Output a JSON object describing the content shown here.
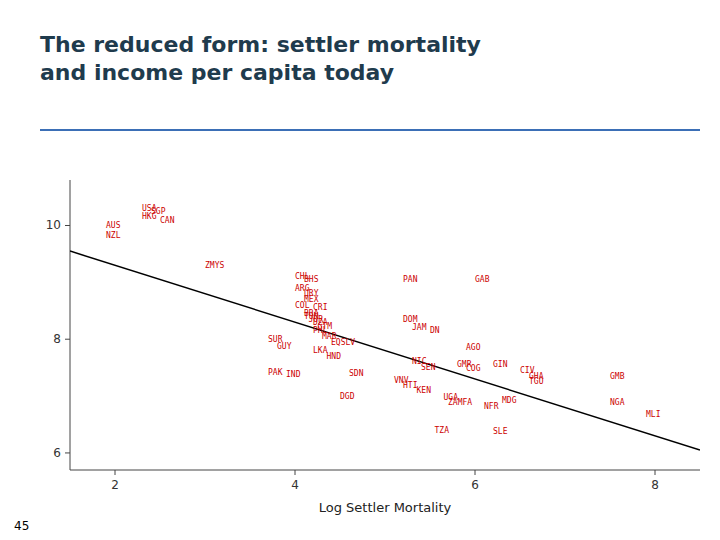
{
  "chart_data": {
    "type": "scatter",
    "title": "The reduced form: settler mortality\nand income per capita today",
    "xlabel": "Log Settler Mortality",
    "annotation": "45",
    "xlim": [
      1.5,
      8.5
    ],
    "ylim": [
      5.7,
      10.8
    ],
    "xticks": [
      2,
      4,
      6,
      8
    ],
    "yticks": [
      6,
      8,
      10
    ],
    "grid": false,
    "color": "#cc0000",
    "x": [
      1.9,
      1.9,
      2.3,
      2.4,
      2.3,
      2.5,
      3.0,
      4.0,
      4.1,
      4.0,
      4.1,
      4.1,
      4.0,
      4.2,
      4.1,
      5.2,
      6.0,
      4.1,
      4.15,
      4.2,
      4.25,
      4.2,
      5.2,
      5.3,
      5.5,
      3.7,
      3.8,
      4.3,
      4.4,
      4.2,
      4.35,
      5.9,
      5.3,
      5.4,
      5.8,
      5.9,
      6.2,
      6.5,
      6.6,
      6.6,
      7.5,
      3.7,
      3.9,
      4.6,
      5.1,
      5.2,
      5.35,
      4.5,
      5.65,
      5.7,
      6.1,
      6.3,
      7.5,
      7.9,
      5.55,
      6.2
    ],
    "values": [
      10.0,
      9.82,
      10.3,
      10.25,
      10.15,
      10.08,
      9.3,
      9.1,
      9.05,
      8.9,
      8.8,
      8.7,
      8.6,
      8.55,
      8.45,
      9.05,
      9.05,
      8.4,
      8.35,
      8.3,
      8.22,
      8.15,
      8.35,
      8.2,
      8.15,
      8.0,
      7.88,
      8.05,
      7.95,
      7.8,
      7.7,
      7.85,
      7.6,
      7.5,
      7.55,
      7.48,
      7.55,
      7.45,
      7.35,
      7.25,
      7.35,
      7.42,
      7.38,
      7.4,
      7.28,
      7.18,
      7.1,
      7.0,
      6.98,
      6.88,
      6.82,
      6.92,
      6.88,
      6.68,
      6.4,
      6.38
    ],
    "labels": [
      "AUS",
      "NZL",
      "USA",
      "SGP",
      "HKG",
      "CAN",
      "ZMYS",
      "CHL",
      "BHS",
      "ARG",
      "URY",
      "MEX",
      "COL",
      "CRI",
      "BRA",
      "PAN",
      "GAB",
      "TUN",
      "JOR",
      "DZA",
      "GTM",
      "PHL",
      "DOM",
      "JAM",
      "DN",
      "SUR",
      "GUY",
      "MAR",
      "EQSLV",
      "LKA",
      "HND",
      "AGO",
      "NIC",
      "SEN",
      "GMR",
      "COG",
      "GIN",
      "CIV",
      "GHA",
      "TGO",
      "GMB",
      "PAK",
      "IND",
      "SDN",
      "VNV",
      "HTI",
      "KEN",
      "DGD",
      "UGA",
      "ZAMFA",
      "NFR",
      "MDG",
      "NGA",
      "MLI",
      "TZA",
      "SLE"
    ],
    "regression_line": {
      "x": [
        1.5,
        8.5
      ],
      "values": [
        9.55,
        6.05
      ],
      "color": "#000000"
    }
  }
}
